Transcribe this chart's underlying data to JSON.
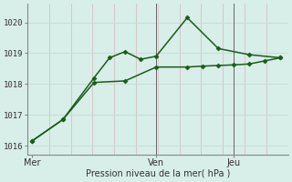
{
  "background_color": "#d8eee8",
  "grid_h_color": "#c8dcd8",
  "grid_v_color": "#d4c8c8",
  "line_color": "#1a5c1a",
  "marker_color": "#1a5c1a",
  "xlabel": "Pression niveau de la mer( hPa )",
  "ylim": [
    1015.7,
    1020.6
  ],
  "yticks": [
    1016,
    1017,
    1018,
    1019
  ],
  "day_labels": [
    "Mer",
    "Ven",
    "Jeu"
  ],
  "day_positions": [
    0,
    8,
    13
  ],
  "line1_x": [
    0,
    2,
    4,
    6,
    8,
    10,
    11,
    12,
    13,
    14,
    15,
    16
  ],
  "line1_y": [
    1016.15,
    1016.85,
    1018.05,
    1018.1,
    1018.55,
    1018.55,
    1018.58,
    1018.6,
    1018.62,
    1018.65,
    1018.75,
    1018.85
  ],
  "line2_x": [
    0,
    2,
    4,
    5,
    6,
    7,
    8,
    10,
    12,
    14,
    16
  ],
  "line2_y": [
    1016.15,
    1016.85,
    1018.2,
    1018.85,
    1019.05,
    1018.8,
    1018.9,
    1020.15,
    1019.15,
    1018.95,
    1018.85
  ],
  "vline_positions": [
    8,
    13
  ],
  "xlim": [
    -0.3,
    16.5
  ],
  "xtick_positions": [
    0.5,
    8.5,
    13.5
  ],
  "top_ytick": 1020
}
